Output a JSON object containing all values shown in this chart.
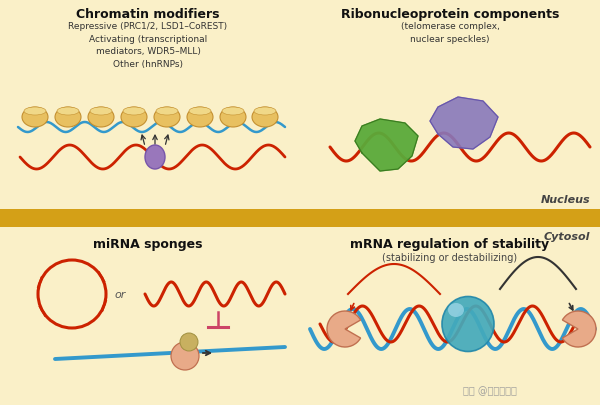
{
  "bg_color": "#faf0c8",
  "divider_color": "#d4a017",
  "red": "#cc2200",
  "blue": "#3399cc",
  "gold_nuc": "#e8c060",
  "gold_nuc_edge": "#c49030",
  "green": "#5aaa3a",
  "green_edge": "#3a7a20",
  "purple": "#8878bb",
  "purple_edge": "#6655aa",
  "teal": "#44aabb",
  "teal_edge": "#2288aa",
  "salmon": "#e8aa88",
  "salmon_edge": "#c07050",
  "lncrna_ball": "#9977bb",
  "lncrna_ball_edge": "#7755aa",
  "dark": "#333333",
  "inhibit": "#cc4466",
  "panel_titles": {
    "tl": "Chromatin modifiers",
    "tr": "Ribonucleoprotein components",
    "bl": "miRNA sponges",
    "br": "mRNA regulation of stability"
  },
  "panel_subtitles": {
    "tl": "Repressive (PRC1/2, LSD1–CoREST)\nActivating (transcriptional\nmediators, WDR5–MLL)\nOther (hnRNPs)",
    "tr": "(telomerase complex,\nnuclear speckles)",
    "br": "(stabilizing or destabilizing)"
  },
  "nucleus_label": "Nucleus",
  "cytosol_label": "Cytosol",
  "watermark": "知乎 @全式金生物"
}
